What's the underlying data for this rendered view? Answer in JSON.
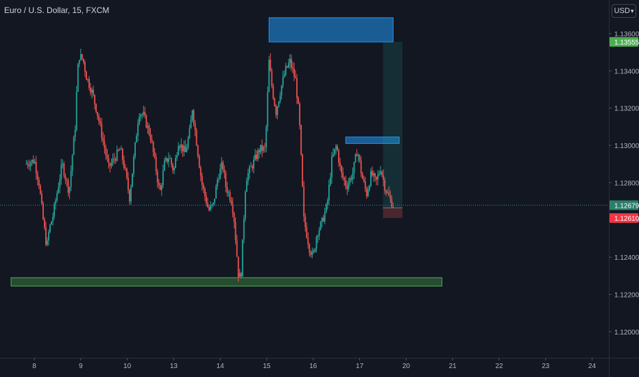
{
  "header": {
    "symbol_title": "Euro / U.S. Dollar, 15, FXCM",
    "currency_label": "USD"
  },
  "colors": {
    "background": "#131722",
    "up_candle": "#26a69a",
    "down_candle": "#ef5350",
    "resistance_zone": "#2196f3",
    "support_zone": "#4caf50",
    "last_price_badge": "#4caf50",
    "red_price_badge": "#f23645"
  },
  "chart_data": {
    "type": "candlestick",
    "x_tick_labels": [
      "8",
      "9",
      "10",
      "13",
      "14",
      "15",
      "16",
      "17",
      "20",
      "21",
      "22",
      "23",
      "24"
    ],
    "y_tick_labels": [
      "1.13600",
      "1.13400",
      "1.13200",
      "1.13000",
      "1.12800",
      "1.12600",
      "1.12400",
      "1.12200",
      "1.12000"
    ],
    "y_ticks": [
      1.136,
      1.134,
      1.132,
      1.13,
      1.128,
      1.126,
      1.124,
      1.122,
      1.12
    ],
    "ylim": [
      1.1186,
      1.1378
    ],
    "price_path": [
      [
        -0.2,
        1.129
      ],
      [
        0.0,
        1.1292
      ],
      [
        0.1,
        1.128
      ],
      [
        0.18,
        1.1262
      ],
      [
        0.27,
        1.1245
      ],
      [
        0.32,
        1.1255
      ],
      [
        0.4,
        1.1262
      ],
      [
        0.5,
        1.1276
      ],
      [
        0.6,
        1.129
      ],
      [
        0.68,
        1.1282
      ],
      [
        0.75,
        1.1275
      ],
      [
        0.82,
        1.1295
      ],
      [
        0.88,
        1.131
      ],
      [
        0.93,
        1.134
      ],
      [
        0.97,
        1.1348
      ],
      [
        1.05,
        1.1346
      ],
      [
        1.12,
        1.1337
      ],
      [
        1.25,
        1.1328
      ],
      [
        1.35,
        1.1318
      ],
      [
        1.5,
        1.13
      ],
      [
        1.6,
        1.1288
      ],
      [
        1.7,
        1.1292
      ],
      [
        1.85,
        1.1298
      ],
      [
        1.95,
        1.1287
      ],
      [
        2.05,
        1.1272
      ],
      [
        2.15,
        1.1295
      ],
      [
        2.25,
        1.1318
      ],
      [
        2.35,
        1.1316
      ],
      [
        2.5,
        1.1305
      ],
      [
        2.6,
        1.129
      ],
      [
        2.7,
        1.1274
      ],
      [
        2.8,
        1.129
      ],
      [
        2.9,
        1.1294
      ],
      [
        3.0,
        1.1286
      ],
      [
        3.1,
        1.1302
      ],
      [
        3.25,
        1.1296
      ],
      [
        3.35,
        1.1308
      ],
      [
        3.4,
        1.132
      ],
      [
        3.5,
        1.13
      ],
      [
        3.6,
        1.128
      ],
      [
        3.75,
        1.1265
      ],
      [
        3.85,
        1.1268
      ],
      [
        3.95,
        1.1283
      ],
      [
        4.05,
        1.129
      ],
      [
        4.12,
        1.1278
      ],
      [
        4.25,
        1.127
      ],
      [
        4.3,
        1.126
      ],
      [
        4.4,
        1.1228
      ],
      [
        4.45,
        1.1232
      ],
      [
        4.55,
        1.1282
      ],
      [
        4.7,
        1.129
      ],
      [
        4.85,
        1.1298
      ],
      [
        4.97,
        1.1298
      ],
      [
        5.05,
        1.1345
      ],
      [
        5.12,
        1.133
      ],
      [
        5.2,
        1.1318
      ],
      [
        5.3,
        1.133
      ],
      [
        5.4,
        1.134
      ],
      [
        5.5,
        1.1345
      ],
      [
        5.62,
        1.1335
      ],
      [
        5.7,
        1.1315
      ],
      [
        5.8,
        1.126
      ],
      [
        5.92,
        1.1245
      ],
      [
        6.0,
        1.124
      ],
      [
        6.08,
        1.1253
      ],
      [
        6.18,
        1.1258
      ],
      [
        6.3,
        1.1268
      ],
      [
        6.4,
        1.1292
      ],
      [
        6.5,
        1.13
      ],
      [
        6.6,
        1.1285
      ],
      [
        6.72,
        1.1278
      ],
      [
        6.85,
        1.1285
      ],
      [
        6.95,
        1.1298
      ],
      [
        7.05,
        1.1283
      ],
      [
        7.15,
        1.1274
      ],
      [
        7.25,
        1.1285
      ],
      [
        7.35,
        1.128
      ],
      [
        7.45,
        1.1288
      ],
      [
        7.55,
        1.1277
      ],
      [
        7.65,
        1.1271
      ],
      [
        7.72,
        1.1268
      ]
    ],
    "zones": [
      {
        "kind": "resistance",
        "x_start": 5.05,
        "x_end": 7.72,
        "y_low": 1.13555,
        "y_high": 1.13685
      },
      {
        "kind": "resistance",
        "x_start": 6.7,
        "x_end": 7.85,
        "y_low": 1.1301,
        "y_high": 1.13045
      },
      {
        "kind": "support",
        "x_start": -0.5,
        "x_end": 8.77,
        "y_low": 1.12245,
        "y_high": 1.1229
      }
    ],
    "long_position": {
      "x_start": 7.5,
      "x_end": 7.92,
      "entry": 1.12665,
      "target": 1.13555,
      "stop": 1.1261
    },
    "last_price_line": 1.12679,
    "price_badges": [
      {
        "value": 1.13555,
        "label": "1.13555",
        "color": "#4caf50"
      },
      {
        "value": 1.12679,
        "label": "1.12679",
        "color": "#2e7d6b"
      },
      {
        "value": 1.1261,
        "label": "1.12610",
        "color": "#f23645"
      }
    ]
  }
}
